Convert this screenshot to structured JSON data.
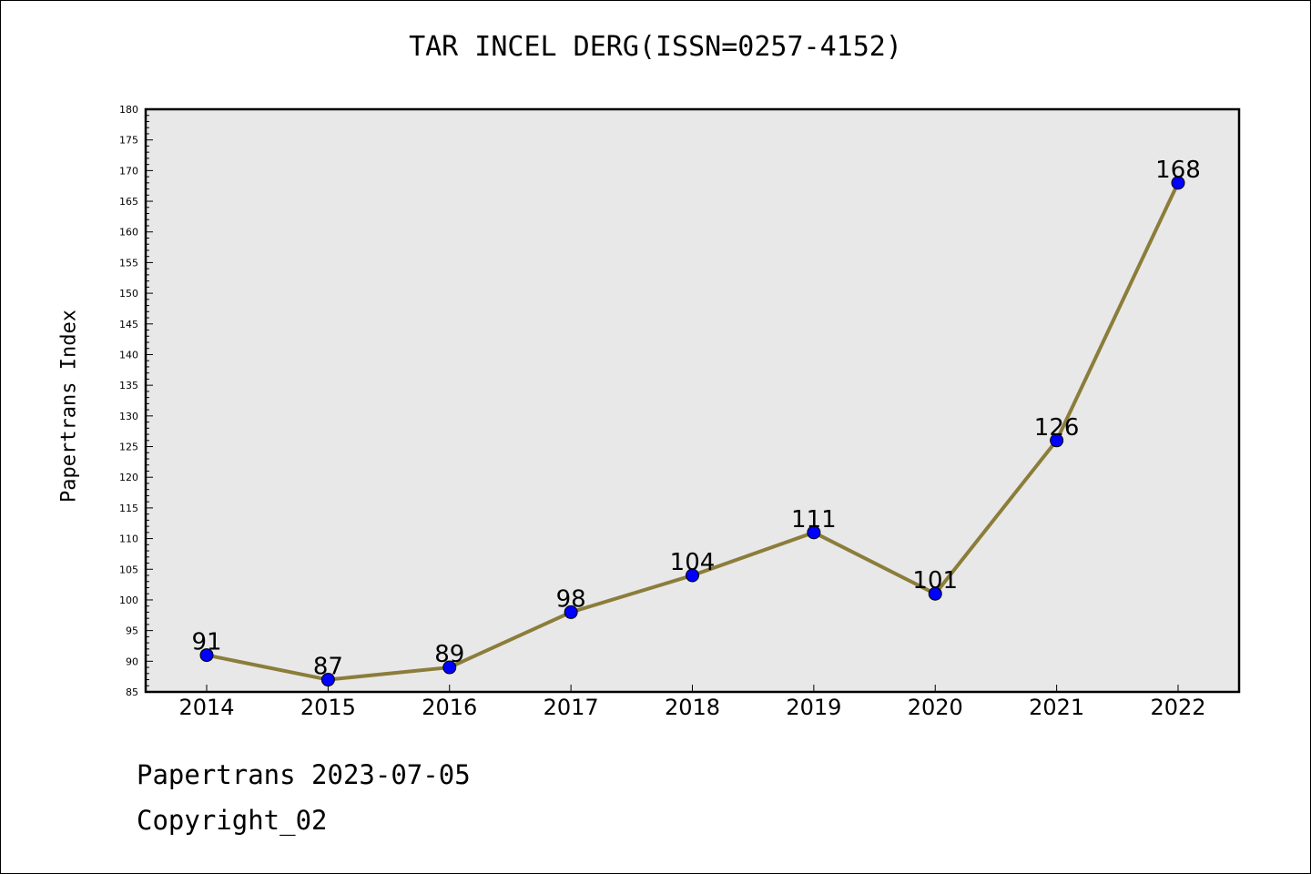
{
  "header": {
    "title": "TAR INCEL DERG(ISSN=0257-4152)"
  },
  "footer": {
    "line1": "Papertrans 2023-07-05",
    "line2": "Copyright_02"
  },
  "colors": {
    "line": "#8B7D3A",
    "marker": "#0000FF",
    "plot_bg": "#E8E8E8"
  },
  "chart_data": {
    "type": "line",
    "title": "TAR INCEL DERG(ISSN=0257-4152)",
    "xlabel": "",
    "ylabel": "Papertrans Index",
    "categories": [
      "2014",
      "2015",
      "2016",
      "2017",
      "2018",
      "2019",
      "2020",
      "2021",
      "2022"
    ],
    "values": [
      91,
      87,
      89,
      98,
      104,
      111,
      101,
      126,
      168
    ],
    "ylim": [
      85,
      180
    ],
    "yticks": [
      85,
      90,
      95,
      100,
      105,
      110,
      115,
      120,
      125,
      130,
      135,
      140,
      145,
      150,
      155,
      160,
      165,
      170,
      175,
      180
    ],
    "grid": false,
    "legend": "none",
    "data_labels": true
  }
}
